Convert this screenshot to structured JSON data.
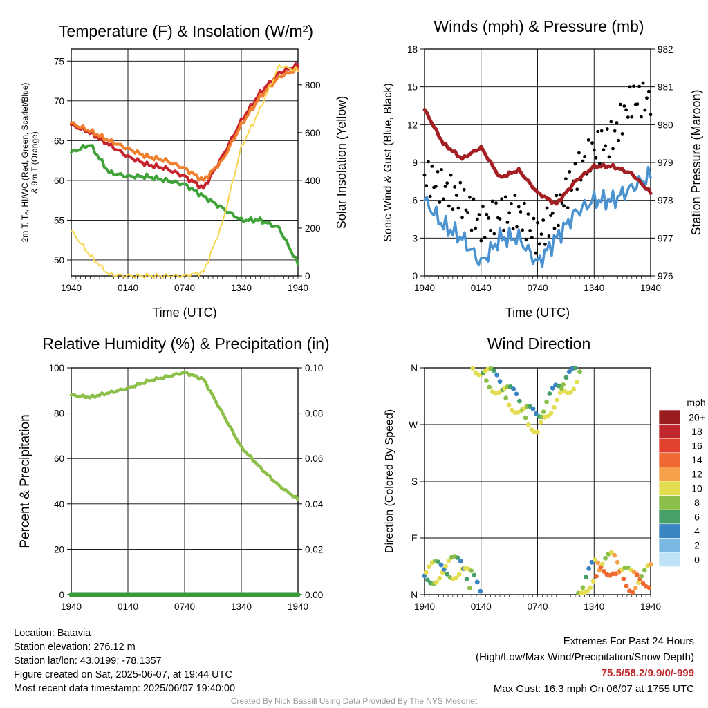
{
  "charts": {
    "temp": {
      "title": "Temperature (F) & Insolation (W/m²)",
      "xlabel": "Time (UTC)",
      "ylabel_left_lines": [
        "2m T, Tₑ, HI/WC (Red, Green, Scarlet/Blue)",
        "& 9m T (Orange)"
      ],
      "ylabel_right": "Solar Insolation (Yellow)",
      "x_ticks": [
        "1940",
        "0140",
        "0740",
        "1340",
        "1940"
      ],
      "y_left_ticks": [
        "50",
        "55",
        "60",
        "65",
        "70",
        "75"
      ],
      "y_right_ticks": [
        "0",
        "200",
        "400",
        "600",
        "800"
      ]
    },
    "wind": {
      "title": "Winds (mph) & Pressure (mb)",
      "xlabel": "Time (UTC)",
      "ylabel_left": "Sonic Wind & Gust (Blue, Black)",
      "ylabel_right": "Station Pressure (Maroon)",
      "x_ticks": [
        "1940",
        "0140",
        "0740",
        "1340",
        "1940"
      ],
      "y_left_ticks": [
        "0",
        "3",
        "6",
        "9",
        "12",
        "15",
        "18"
      ],
      "y_right_ticks": [
        "976",
        "977",
        "978",
        "979",
        "980",
        "981",
        "982"
      ]
    },
    "rh": {
      "title": "Relative Humidity (%) & Precipitation (in)",
      "ylabel_left": "Percent & Precipitation",
      "x_ticks": [
        "1940",
        "0140",
        "0740",
        "1340",
        "1940"
      ],
      "y_left_ticks": [
        "0",
        "20",
        "40",
        "60",
        "80",
        "100"
      ],
      "y_right_ticks": [
        "0.00",
        "0.02",
        "0.04",
        "0.06",
        "0.08",
        "0.10"
      ]
    },
    "dir": {
      "title": "Wind Direction",
      "ylabel_left": "Direction (Colored By Speed)",
      "x_ticks": [
        "1940",
        "0140",
        "0740",
        "1340",
        "1940"
      ],
      "y_left_ticks": [
        "N",
        "E",
        "S",
        "W",
        "N"
      ],
      "legend_title": "mph",
      "legend_labels": [
        "20+",
        "18",
        "16",
        "14",
        "12",
        "10",
        "8",
        "6",
        "4",
        "2",
        "0"
      ],
      "legend_colors": [
        "#9b1c1f",
        "#c0282d",
        "#e0412c",
        "#ef6a33",
        "#f7a24a",
        "#e3dd52",
        "#8cc04a",
        "#47a068",
        "#3a84c2",
        "#7ab8e3",
        "#bfe3f6"
      ]
    }
  },
  "chart_data": [
    {
      "type": "line",
      "title": "Temperature (F) & Insolation (W/m²)",
      "xlabel": "Time (UTC)",
      "x": [
        "1940",
        "2140",
        "2340",
        "0140",
        "0340",
        "0540",
        "0740",
        "0940",
        "1140",
        "1340",
        "1540",
        "1740",
        "1940"
      ],
      "ylim": [
        48,
        76.5
      ],
      "ylim_right": [
        0,
        950
      ],
      "series": [
        {
          "name": "2m T",
          "color": "#c8232c",
          "axis": "left",
          "values": [
            67,
            66,
            64.5,
            63,
            62,
            61.5,
            60.5,
            59,
            63,
            67.5,
            71,
            73.5,
            74.5
          ]
        },
        {
          "name": "9m T",
          "color": "#f07f2e",
          "axis": "left",
          "values": [
            67.2,
            66.2,
            65,
            64,
            63,
            62.5,
            61.5,
            60,
            62.5,
            67,
            70.5,
            73,
            74
          ]
        },
        {
          "name": "Td",
          "color": "#3fa33a",
          "axis": "left",
          "values": [
            63.5,
            64.5,
            61,
            60.5,
            60.5,
            60,
            59.5,
            58,
            56.5,
            55,
            55,
            54,
            49.5
          ]
        },
        {
          "name": "Solar Insolation",
          "color": "#f7d54a",
          "axis": "right",
          "values": [
            190,
            85,
            5,
            0,
            0,
            0,
            0,
            15,
            220,
            540,
            700,
            880,
            860
          ]
        }
      ]
    },
    {
      "type": "line",
      "title": "Winds (mph) & Pressure (mb)",
      "xlabel": "Time (UTC)",
      "x": [
        "1940",
        "2140",
        "2340",
        "0140",
        "0340",
        "0540",
        "0740",
        "0940",
        "1140",
        "1340",
        "1540",
        "1740",
        "1940"
      ],
      "ylim": [
        0,
        18
      ],
      "ylim_right": [
        976,
        982
      ],
      "series": [
        {
          "name": "Sonic Wind",
          "color": "#4a92d0",
          "axis": "left",
          "values": [
            6,
            4,
            3,
            1,
            3,
            3,
            1,
            3,
            5,
            6,
            6,
            7,
            8
          ]
        },
        {
          "name": "Gust",
          "color": "#000000",
          "axis": "left",
          "values": [
            8,
            7,
            6,
            4,
            5,
            5,
            3,
            5,
            8,
            10,
            11,
            14,
            14
          ]
        },
        {
          "name": "Station Pressure",
          "color": "#a31f22",
          "axis": "right",
          "values": [
            980.4,
            979.5,
            979.1,
            979.4,
            978.6,
            978.8,
            978.2,
            977.9,
            978.5,
            978.9,
            978.9,
            978.7,
            978.2
          ]
        }
      ]
    },
    {
      "type": "line",
      "title": "Relative Humidity (%) & Precipitation (in)",
      "x": [
        "1940",
        "2140",
        "2340",
        "0140",
        "0340",
        "0540",
        "0740",
        "0940",
        "1140",
        "1340",
        "1540",
        "1740",
        "1940"
      ],
      "ylim": [
        0,
        100
      ],
      "ylim_right": [
        0,
        0.1
      ],
      "series": [
        {
          "name": "Relative Humidity",
          "color": "#8cc04a",
          "axis": "left",
          "values": [
            88,
            87,
            89,
            91,
            94,
            96,
            98,
            95,
            80,
            65,
            56,
            48,
            42
          ]
        },
        {
          "name": "Precipitation",
          "color": "#3a9a3a",
          "axis": "right",
          "values": [
            0,
            0,
            0,
            0,
            0,
            0,
            0,
            0,
            0,
            0,
            0,
            0,
            0
          ]
        }
      ]
    },
    {
      "type": "scatter",
      "title": "Wind Direction",
      "x": [
        "1940",
        "2140",
        "2340",
        "0140",
        "0340",
        "0540",
        "0740",
        "0940",
        "1140",
        "1340",
        "1540",
        "1740",
        "1940"
      ],
      "y_categories": [
        "N",
        "E",
        "S",
        "W",
        "N"
      ],
      "series": [
        {
          "name": "Direction",
          "values": [
            30,
            40,
            45,
            355,
            330,
            300,
            270,
            320,
            345,
            40,
            50,
            20,
            30
          ]
        }
      ]
    }
  ],
  "footer": {
    "location": "Location: Batavia",
    "elevation": "Station elevation: 276.12 m",
    "latlon": "Station lat/lon: 43.0199; -78.1357",
    "created": "Figure created on Sat, 2025-06-07, at 19:44 UTC",
    "recent": "Most recent data timestamp: 2025/06/07 19:40:00",
    "extremes_title": "Extremes For Past 24 Hours",
    "extremes_sub": "(High/Low/Max Wind/Precipitation/Snow Depth)",
    "extremes_values": "75.5/58.2/9.9/0/-999",
    "max_gust": "Max Gust: 16.3 mph On 06/07 at 1755 UTC",
    "credit": "Created By Nick Bassill Using Data Provided By The NYS Mesonet"
  }
}
